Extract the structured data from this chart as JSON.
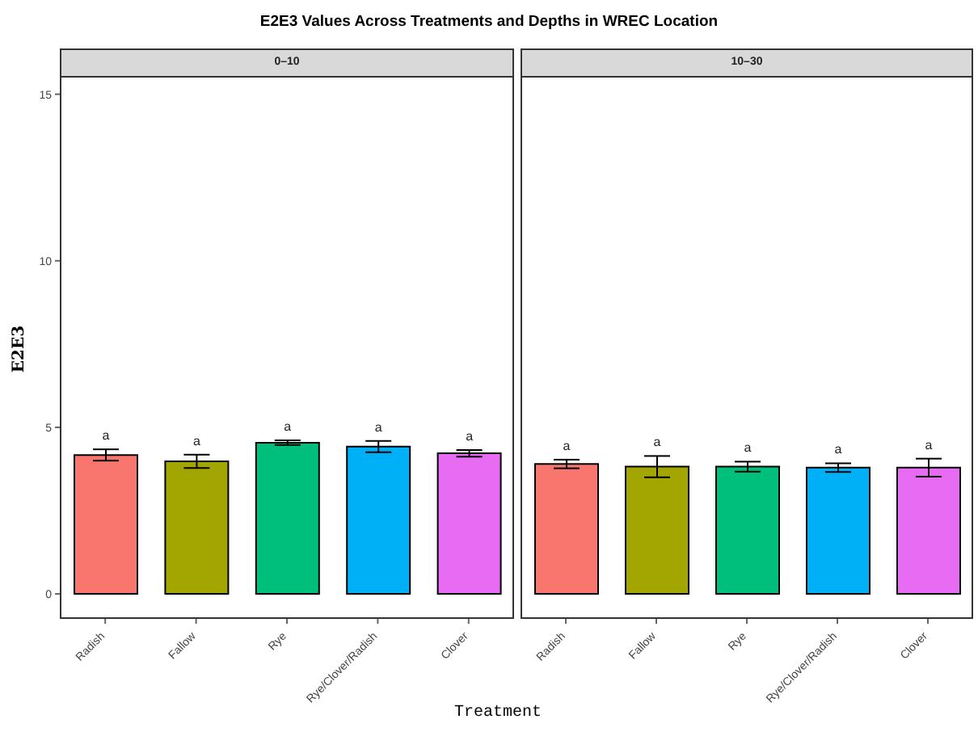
{
  "chart_data": [
    {
      "type": "bar",
      "title": "E2E3 Values Across Treatments and Depths in WREC Location",
      "subtitle": "0–10",
      "ylabel": "E2E3",
      "categories": [
        "Radish",
        "Fallow",
        "Rye",
        "Rye/Clover/Radish",
        "Clover"
      ],
      "values": [
        4.17,
        3.98,
        4.54,
        4.42,
        4.22
      ],
      "errors": [
        0.17,
        0.2,
        0.07,
        0.17,
        0.1
      ],
      "value_labels": [
        "a",
        "a",
        "a",
        "a",
        "a"
      ],
      "colors": [
        "#f8766d",
        "#a3a500",
        "#00bf7d",
        "#00b0f6",
        "#e76bf3"
      ],
      "ylim": [
        -0.75,
        15.5
      ],
      "yticks": [
        0,
        5,
        10,
        15
      ],
      "grid": false,
      "legend": false
    },
    {
      "type": "bar",
      "subtitle": "10–30",
      "xlabel": "Treatment",
      "categories": [
        "Radish",
        "Fallow",
        "Rye",
        "Rye/Clover/Radish",
        "Clover"
      ],
      "values": [
        3.9,
        3.82,
        3.82,
        3.79,
        3.79
      ],
      "errors": [
        0.13,
        0.32,
        0.15,
        0.13,
        0.27
      ],
      "value_labels": [
        "a",
        "a",
        "a",
        "a",
        "a"
      ],
      "colors": [
        "#f8766d",
        "#a3a500",
        "#00bf7d",
        "#00b0f6",
        "#e76bf3"
      ],
      "ylim": [
        -0.75,
        15.5
      ],
      "yticks": [
        0,
        5,
        10,
        15
      ],
      "tick_labels": "x",
      "grid": false,
      "legend": false
    }
  ]
}
